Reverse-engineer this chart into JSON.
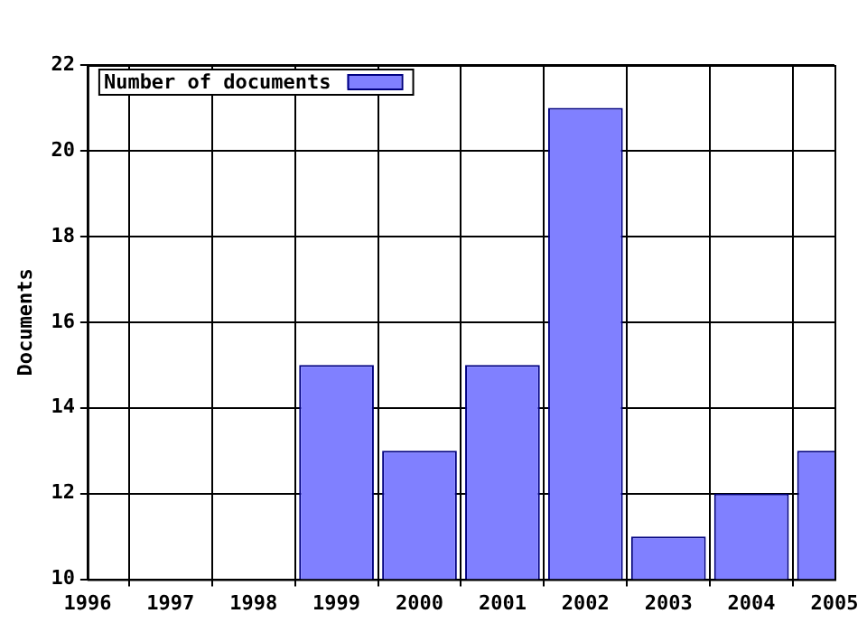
{
  "chart_data": {
    "type": "bar",
    "ylabel": "Documents",
    "x": [
      1999,
      2000,
      2001,
      2002,
      2003,
      2004,
      2005
    ],
    "series": [
      {
        "name": "Number of documents",
        "color": "#8080ff",
        "values": [
          15,
          13,
          15,
          21,
          11,
          12,
          13
        ]
      }
    ],
    "xlim": [
      1996,
      2005
    ],
    "xticks": [
      1996,
      1997,
      1998,
      1999,
      2000,
      2001,
      2002,
      2003,
      2004,
      2005
    ],
    "ylim": [
      10,
      22
    ],
    "yticks": [
      10,
      12,
      14,
      16,
      18,
      20,
      22
    ],
    "grid": true,
    "legend": "top left"
  }
}
